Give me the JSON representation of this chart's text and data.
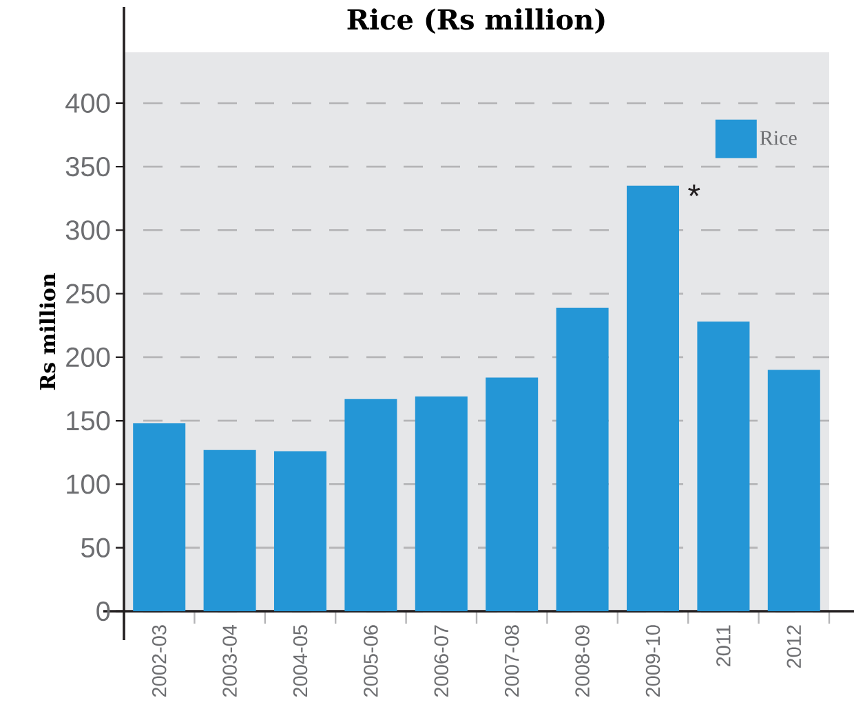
{
  "chart_data": {
    "type": "bar",
    "title": "Rice (Rs million)",
    "ylabel": "Rs million",
    "categories": [
      "2002-03",
      "2003-04",
      "2004-05",
      "2005-06",
      "2006-07",
      "2007-08",
      "2008-09",
      "2009-10",
      "2011",
      "2012"
    ],
    "series": [
      {
        "name": "Rice",
        "color": "#2496d6",
        "values": [
          148,
          127,
          126,
          167,
          169,
          184,
          239,
          335,
          228,
          190
        ]
      }
    ],
    "ylim": [
      0,
      440
    ],
    "yticks": [
      0,
      50,
      100,
      150,
      200,
      250,
      300,
      350,
      400
    ],
    "grid": "y",
    "legend": "top right",
    "annotations": [
      {
        "text": "*",
        "x": "2009-10",
        "y": 335
      }
    ]
  }
}
